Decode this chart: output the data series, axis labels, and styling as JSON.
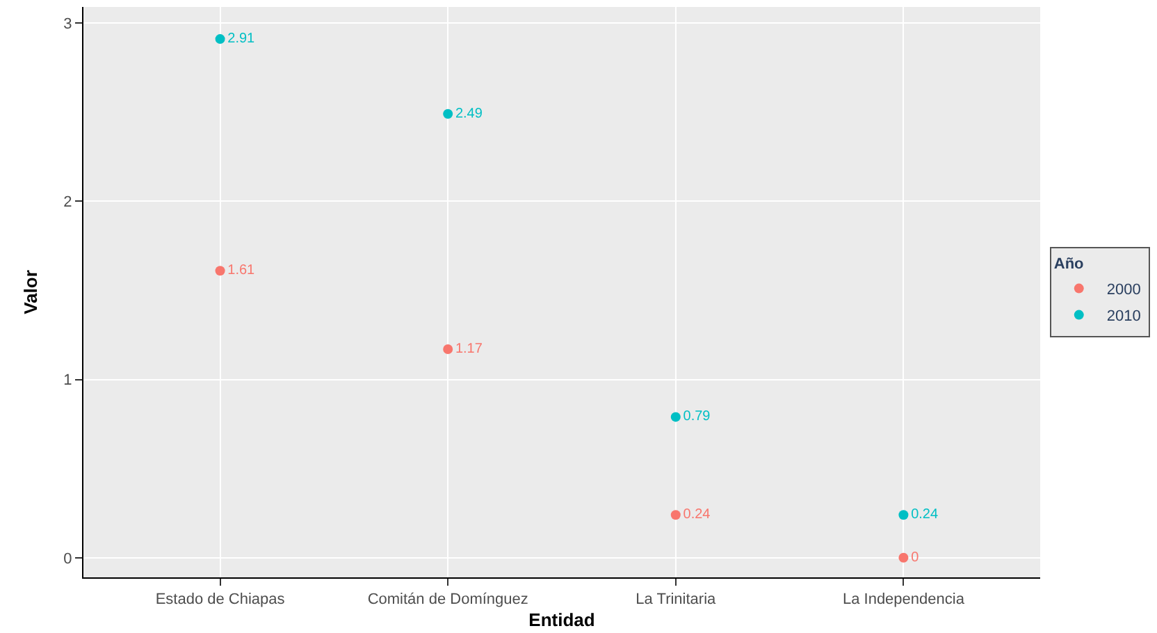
{
  "chart_data": {
    "type": "scatter",
    "xlabel": "Entidad",
    "ylabel": "Valor",
    "legend_title": "Año",
    "categories": [
      "Estado de Chiapas",
      "Comitán de Domínguez",
      "La Trinitaria",
      "La Independencia"
    ],
    "series": [
      {
        "name": "2000",
        "color": "#f8766d",
        "values": [
          1.61,
          1.17,
          0.24,
          0
        ]
      },
      {
        "name": "2010",
        "color": "#00bfc4",
        "values": [
          2.91,
          2.49,
          0.79,
          0.24
        ]
      }
    ],
    "ylim": [
      -0.11,
      3.09
    ],
    "yticks": [
      0,
      1,
      2,
      3
    ],
    "grid": true,
    "legend": "right",
    "marker": "circle",
    "data_labels": true
  }
}
